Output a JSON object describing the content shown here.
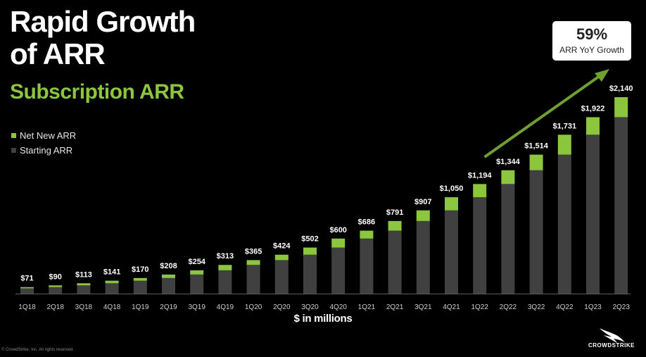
{
  "slide": {
    "title": "Rapid Growth\nof ARR",
    "subtitle": "Subscription ARR",
    "unit_label": "$ in millions",
    "copyright": "© CrowdStrike, Inc. All rights reserved.",
    "logo_text": "CROWDSTRIKE"
  },
  "callout": {
    "value": "59%",
    "label": "ARR YoY Growth"
  },
  "legend": [
    {
      "label": "Net New ARR",
      "color": "#8cc63f"
    },
    {
      "label": "Starting ARR",
      "color": "#404040"
    }
  ],
  "colors": {
    "accent": "#8cc63f",
    "starting": "#404040",
    "arrow": "#6f9f2e"
  },
  "chart_data": {
    "type": "bar",
    "stacked": true,
    "categories": [
      "1Q18",
      "2Q18",
      "3Q18",
      "4Q18",
      "1Q19",
      "2Q19",
      "3Q19",
      "4Q19",
      "1Q20",
      "2Q20",
      "3Q20",
      "4Q20",
      "1Q21",
      "2Q21",
      "3Q21",
      "4Q21",
      "1Q22",
      "2Q22",
      "3Q22",
      "4Q22",
      "1Q23",
      "2Q23"
    ],
    "totals": [
      71,
      90,
      113,
      141,
      170,
      208,
      254,
      313,
      365,
      424,
      502,
      600,
      686,
      791,
      907,
      1050,
      1194,
      1344,
      1514,
      1731,
      1922,
      2140
    ],
    "total_labels": [
      "$71",
      "$90",
      "$113",
      "$141",
      "$170",
      "$208",
      "$254",
      "$313",
      "$365",
      "$424",
      "$502",
      "$600",
      "$686",
      "$791",
      "$907",
      "$1,050",
      "$1,194",
      "$1,344",
      "$1,514",
      "$1,731",
      "$1,922",
      "$2,140"
    ],
    "series": [
      {
        "name": "Starting ARR",
        "values": [
          58,
          71,
          90,
          113,
          141,
          170,
          208,
          254,
          313,
          365,
          424,
          502,
          600,
          686,
          791,
          907,
          1050,
          1194,
          1344,
          1514,
          1731,
          1922
        ]
      },
      {
        "name": "Net New ARR",
        "values": [
          13,
          19,
          23,
          28,
          29,
          38,
          46,
          59,
          52,
          59,
          78,
          98,
          86,
          105,
          116,
          143,
          144,
          150,
          170,
          217,
          191,
          218
        ]
      }
    ],
    "ylim": [
      0,
      2200
    ],
    "grid": false,
    "legend_position": "left"
  }
}
